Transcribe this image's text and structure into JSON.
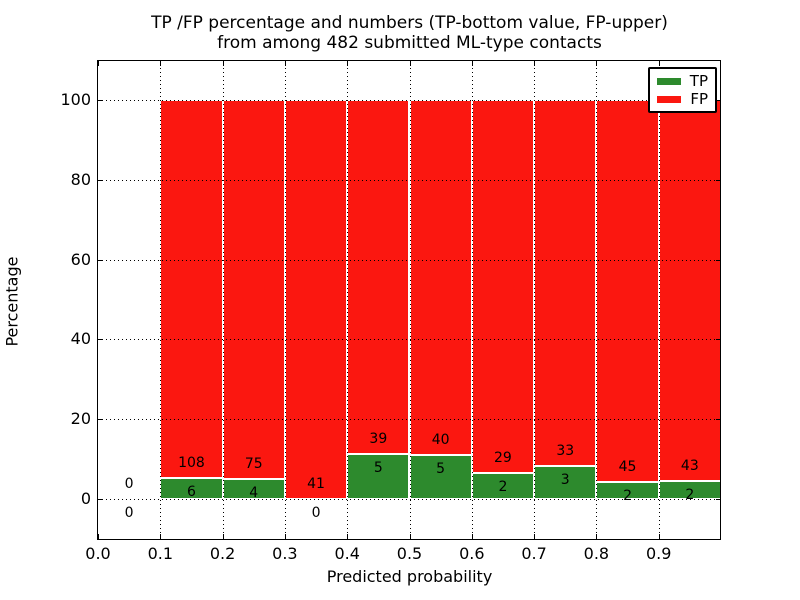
{
  "figure": {
    "title_lines": [
      "TP /FP percentage and numbers (TP-bottom value, FP-upper)",
      "from among 482 submitted ML-type contacts"
    ]
  },
  "chart_data": {
    "type": "bar",
    "stacked": true,
    "title": "TP /FP percentage and numbers (TP-bottom value, FP-upper)\nfrom among 482 submitted ML-type contacts",
    "xlabel": "Predicted probability",
    "ylabel": "Percentage",
    "xlim": [
      0.0,
      1.0
    ],
    "ylim": [
      -10,
      110
    ],
    "x_ticks": [
      0.0,
      0.1,
      0.2,
      0.3,
      0.4,
      0.5,
      0.6,
      0.7,
      0.8,
      0.9
    ],
    "y_ticks": [
      0,
      20,
      40,
      60,
      80,
      100
    ],
    "grid": {
      "style": "dotted",
      "color": "#000000",
      "drawn_over_bars": true
    },
    "colors": {
      "tp": "#2D8A2D",
      "fp": "#FB1710",
      "text": "#000000",
      "background": "#FFFFFF"
    },
    "legend": {
      "position": "upper right",
      "entries": [
        {
          "label": "TP",
          "color": "#2D8A2D"
        },
        {
          "label": "FP",
          "color": "#FB1710"
        }
      ]
    },
    "total_contacts": 482,
    "annotation_rule": "FP count printed above green segment top, TP count printed below it",
    "bins": [
      {
        "x_start": 0.0,
        "x_end": 0.1,
        "tp_count": 0,
        "fp_count": 0,
        "tp_pct": 0.0,
        "fp_pct": 0.0
      },
      {
        "x_start": 0.1,
        "x_end": 0.2,
        "tp_count": 6,
        "fp_count": 108,
        "tp_pct": 5.3,
        "fp_pct": 94.7
      },
      {
        "x_start": 0.2,
        "x_end": 0.3,
        "tp_count": 4,
        "fp_count": 75,
        "tp_pct": 5.1,
        "fp_pct": 94.9
      },
      {
        "x_start": 0.3,
        "x_end": 0.4,
        "tp_count": 0,
        "fp_count": 41,
        "tp_pct": 0.0,
        "fp_pct": 100.0
      },
      {
        "x_start": 0.4,
        "x_end": 0.5,
        "tp_count": 5,
        "fp_count": 39,
        "tp_pct": 11.4,
        "fp_pct": 88.6
      },
      {
        "x_start": 0.5,
        "x_end": 0.6,
        "tp_count": 5,
        "fp_count": 40,
        "tp_pct": 11.1,
        "fp_pct": 88.9
      },
      {
        "x_start": 0.6,
        "x_end": 0.7,
        "tp_count": 2,
        "fp_count": 29,
        "tp_pct": 6.5,
        "fp_pct": 93.5
      },
      {
        "x_start": 0.7,
        "x_end": 0.8,
        "tp_count": 3,
        "fp_count": 33,
        "tp_pct": 8.3,
        "fp_pct": 91.7
      },
      {
        "x_start": 0.8,
        "x_end": 0.9,
        "tp_count": 2,
        "fp_count": 45,
        "tp_pct": 4.3,
        "fp_pct": 95.7
      },
      {
        "x_start": 0.9,
        "x_end": 1.0,
        "tp_count": 2,
        "fp_count": 43,
        "tp_pct": 4.4,
        "fp_pct": 95.6
      }
    ]
  }
}
